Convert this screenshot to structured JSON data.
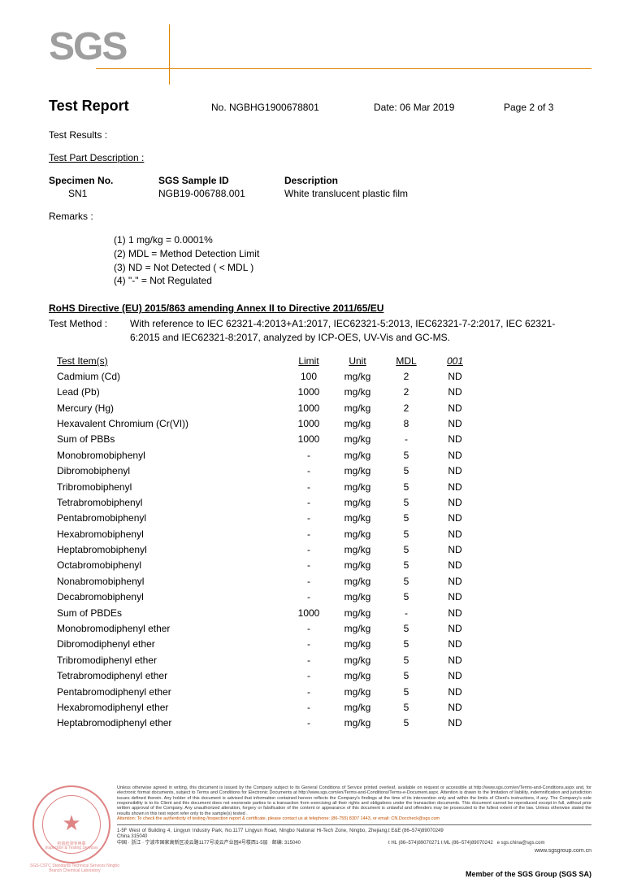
{
  "logo": "SGS",
  "header": {
    "title": "Test Report",
    "no_prefix": "No. ",
    "no": "NGBHG1900678801",
    "date_prefix": "Date: ",
    "date": "06 Mar 2019",
    "page": "Page 2 of 3"
  },
  "test_results_label": "Test Results :",
  "test_part_desc_label": "Test Part Description :",
  "specimen": {
    "h1": "Specimen No.",
    "h2": "SGS Sample ID",
    "h3": "Description",
    "v1": "SN1",
    "v2": "NGB19-006788.001",
    "v3": "White translucent plastic film"
  },
  "remarks_label": "Remarks :",
  "remarks": [
    "(1) 1 mg/kg = 0.0001%",
    "(2) MDL = Method Detection Limit",
    "(3) ND = Not Detected ( < MDL )",
    "(4) \"-\" = Not Regulated"
  ],
  "rohs_title": "RoHS Directive (EU) 2015/863 amending Annex II to Directive 2011/65/EU",
  "method_label": "Test Method :",
  "method_text": "With reference to IEC 62321-4:2013+A1:2017, IEC62321-5:2013, IEC62321-7-2:2017, IEC 62321-6:2015 and IEC62321-8:2017, analyzed by ICP-OES, UV-Vis and GC-MS.",
  "table": {
    "headers": {
      "item": "Test Item(s)",
      "limit": "Limit",
      "unit": "Unit",
      "mdl": "MDL",
      "res": "001"
    },
    "rows": [
      {
        "item": "Cadmium (Cd)",
        "limit": "100",
        "unit": "mg/kg",
        "mdl": "2",
        "res": "ND"
      },
      {
        "item": "Lead (Pb)",
        "limit": "1000",
        "unit": "mg/kg",
        "mdl": "2",
        "res": "ND"
      },
      {
        "item": "Mercury (Hg)",
        "limit": "1000",
        "unit": "mg/kg",
        "mdl": "2",
        "res": "ND"
      },
      {
        "item": "Hexavalent Chromium (Cr(VI))",
        "limit": "1000",
        "unit": "mg/kg",
        "mdl": "8",
        "res": "ND"
      },
      {
        "item": "Sum of PBBs",
        "limit": "1000",
        "unit": "mg/kg",
        "mdl": "-",
        "res": "ND"
      },
      {
        "item": "Monobromobiphenyl",
        "limit": "-",
        "unit": "mg/kg",
        "mdl": "5",
        "res": "ND"
      },
      {
        "item": "Dibromobiphenyl",
        "limit": "-",
        "unit": "mg/kg",
        "mdl": "5",
        "res": "ND"
      },
      {
        "item": "Tribromobiphenyl",
        "limit": "-",
        "unit": "mg/kg",
        "mdl": "5",
        "res": "ND"
      },
      {
        "item": "Tetrabromobiphenyl",
        "limit": "-",
        "unit": "mg/kg",
        "mdl": "5",
        "res": "ND"
      },
      {
        "item": "Pentabromobiphenyl",
        "limit": "-",
        "unit": "mg/kg",
        "mdl": "5",
        "res": "ND"
      },
      {
        "item": "Hexabromobiphenyl",
        "limit": "-",
        "unit": "mg/kg",
        "mdl": "5",
        "res": "ND"
      },
      {
        "item": "Heptabromobiphenyl",
        "limit": "-",
        "unit": "mg/kg",
        "mdl": "5",
        "res": "ND"
      },
      {
        "item": "Octabromobiphenyl",
        "limit": "-",
        "unit": "mg/kg",
        "mdl": "5",
        "res": "ND"
      },
      {
        "item": "Nonabromobiphenyl",
        "limit": "-",
        "unit": "mg/kg",
        "mdl": "5",
        "res": "ND"
      },
      {
        "item": "Decabromobiphenyl",
        "limit": "-",
        "unit": "mg/kg",
        "mdl": "5",
        "res": "ND"
      },
      {
        "item": "Sum of PBDEs",
        "limit": "1000",
        "unit": "mg/kg",
        "mdl": "-",
        "res": "ND"
      },
      {
        "item": "Monobromodiphenyl ether",
        "limit": "-",
        "unit": "mg/kg",
        "mdl": "5",
        "res": "ND"
      },
      {
        "item": "Dibromodiphenyl ether",
        "limit": "-",
        "unit": "mg/kg",
        "mdl": "5",
        "res": "ND"
      },
      {
        "item": "Tribromodiphenyl ether",
        "limit": "-",
        "unit": "mg/kg",
        "mdl": "5",
        "res": "ND"
      },
      {
        "item": "Tetrabromodiphenyl ether",
        "limit": "-",
        "unit": "mg/kg",
        "mdl": "5",
        "res": "ND"
      },
      {
        "item": "Pentabromodiphenyl ether",
        "limit": "-",
        "unit": "mg/kg",
        "mdl": "5",
        "res": "ND"
      },
      {
        "item": "Hexabromodiphenyl ether",
        "limit": "-",
        "unit": "mg/kg",
        "mdl": "5",
        "res": "ND"
      },
      {
        "item": "Heptabromodiphenyl ether",
        "limit": "-",
        "unit": "mg/kg",
        "mdl": "5",
        "res": "ND"
      }
    ]
  },
  "stamp": {
    "line1": "检验检测专用章",
    "line2": "Inspection & Testing Services",
    "sub": "SGS-CSTC Standards Technical Services Ningbo Branch Chemical Laboratory"
  },
  "disclaimer": {
    "body": "Unless otherwise agreed in writing, this document is issued by the Company subject to its General Conditions of Service printed overleaf, available on request or accessible at http://www.sgs.com/en/Terms-and-Conditions.aspx and, for electronic format documents, subject to Terms and Conditions for Electronic Documents at http://www.sgs.com/en/Terms-and-Conditions/Terms-e-Document.aspx. Attention is drawn to the limitation of liability, indemnification and jurisdiction issues defined therein. Any holder of this document is advised that information contained hereon reflects the Company's findings at the time of its intervention only and within the limits of Client's instructions, if any. The Company's sole responsibility is to its Client and this document does not exonerate parties to a transaction from exercising all their rights and obligations under the transaction documents. This document cannot be reproduced except in full, without prior written approval of the Company. Any unauthorized alteration, forgery or falsification of the content or appearance of this document is unlawful and offenders may be prosecuted to the fullest extent of the law. Unless otherwise stated the results shown in this test report refer only to the sample(s) tested .",
    "attention": "Attention: To check the authenticity of testing /inspection report & certificate, please contact us at telephone: (86-755) 8307 1443, or email: CN.Doccheck@sgs.com"
  },
  "addr": {
    "en": "1-5F West of Building 4, Lingyun Industry Park, No.1177 Lingyun Road, Ningbo National Hi-Tech Zone, Ningbo, Zhejiang, China  315040",
    "cn": "中国 · 浙江 · 宁波市国家高新区凌云路1177号凌云产业园4号楼西1-5层",
    "zip": "邮编: 315040",
    "tel_en": "t E&E (86–574)89070249",
    "tel_cn": "t HL  (86–574)89070271  t ML  (86–574)89070242",
    "email": "e sgs.china@sgs.com"
  },
  "links": {
    "site": "www.sgsgroup.com.cn"
  },
  "member": "Member of the SGS Group (SGS SA)",
  "colors": {
    "accent": "#e08500",
    "stamp": "#c42020",
    "logo_gray": "#9e9e9e",
    "text": "#000000",
    "bg": "#ffffff"
  }
}
